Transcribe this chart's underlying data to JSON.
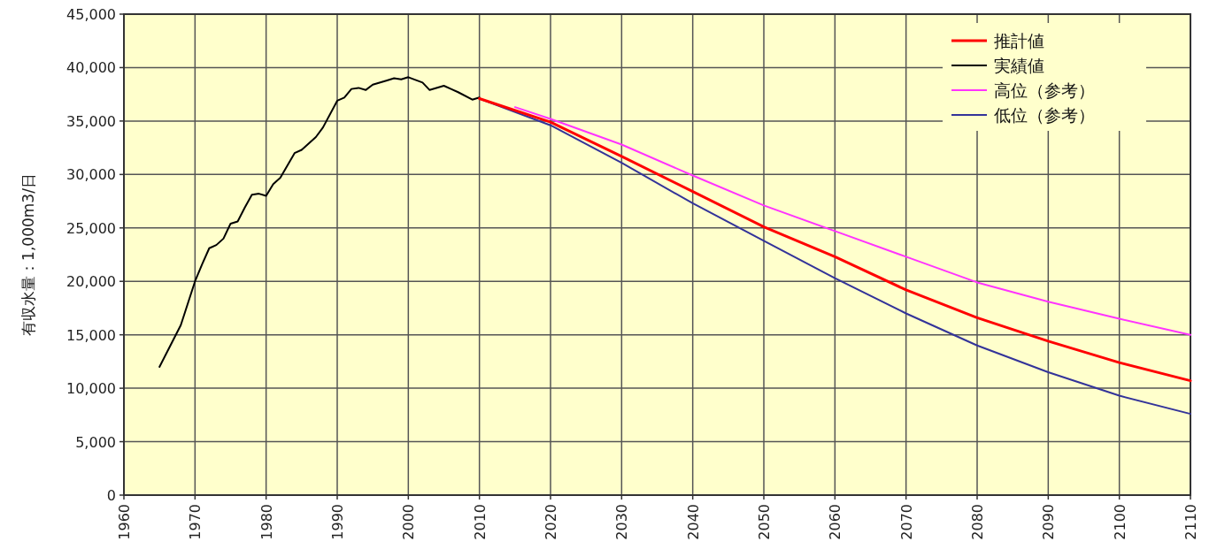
{
  "chart_data": {
    "type": "line",
    "ylabel": "有収水量：1,000m3/日",
    "xlim": [
      1960,
      2110
    ],
    "ylim": [
      0,
      45000
    ],
    "xticks": [
      1960,
      1970,
      1980,
      1990,
      2000,
      2010,
      2020,
      2030,
      2040,
      2050,
      2060,
      2070,
      2080,
      2090,
      2100,
      2110
    ],
    "yticks": [
      0,
      {
        "value": 5000,
        "label": "5,000"
      },
      {
        "value": 10000,
        "label": "10,000"
      },
      {
        "value": 15000,
        "label": "15,000"
      },
      {
        "value": 20000,
        "label": "20,000"
      },
      {
        "value": 25000,
        "label": "25,000"
      },
      {
        "value": 30000,
        "label": "30,000"
      },
      {
        "value": 35000,
        "label": "35,000"
      },
      {
        "value": 40000,
        "label": "40,000"
      },
      {
        "value": 45000,
        "label": "45,000"
      }
    ],
    "grid": true,
    "legend": "top right",
    "series": [
      {
        "name": "推計値",
        "color": "#ff0000",
        "x": [
          2010,
          2020,
          2030,
          2040,
          2050,
          2060,
          2070,
          2080,
          2090,
          2100,
          2110
        ],
        "values": [
          37100,
          34900,
          31700,
          28400,
          25100,
          22300,
          19200,
          16600,
          14400,
          12400,
          10700
        ]
      },
      {
        "name": "実績値",
        "color": "#000000",
        "x": [
          1965,
          1968,
          1970,
          1971,
          1972,
          1973,
          1974,
          1975,
          1976,
          1977,
          1978,
          1979,
          1980,
          1981,
          1982,
          1984,
          1985,
          1986,
          1987,
          1988,
          1990,
          1991,
          1992,
          1993,
          1994,
          1995,
          1997,
          1998,
          1999,
          2000,
          2002,
          2003,
          2005,
          2006,
          2007,
          2009,
          2010
        ],
        "values": [
          12000,
          15900,
          20000,
          21600,
          23100,
          23400,
          24000,
          25400,
          25600,
          26900,
          28100,
          28200,
          28000,
          29100,
          29700,
          32000,
          32300,
          32900,
          33500,
          34400,
          36900,
          37200,
          38000,
          38100,
          37900,
          38400,
          38800,
          39000,
          38900,
          39100,
          38600,
          37900,
          38300,
          38000,
          37700,
          37000,
          37200
        ]
      },
      {
        "name": "高位（参考）",
        "color": "#ff33ff",
        "x": [
          2015,
          2020,
          2030,
          2040,
          2050,
          2060,
          2070,
          2080,
          2090,
          2100,
          2110
        ],
        "values": [
          36300,
          35200,
          32800,
          29900,
          27100,
          24700,
          22300,
          19900,
          18100,
          16500,
          15000
        ]
      },
      {
        "name": "低位（参考）",
        "color": "#333399",
        "x": [
          2010,
          2020,
          2030,
          2040,
          2050,
          2060,
          2070,
          2080,
          2090,
          2100,
          2110
        ],
        "values": [
          37100,
          34600,
          31100,
          27300,
          23800,
          20300,
          17000,
          14000,
          11500,
          9300,
          7600
        ]
      }
    ]
  }
}
